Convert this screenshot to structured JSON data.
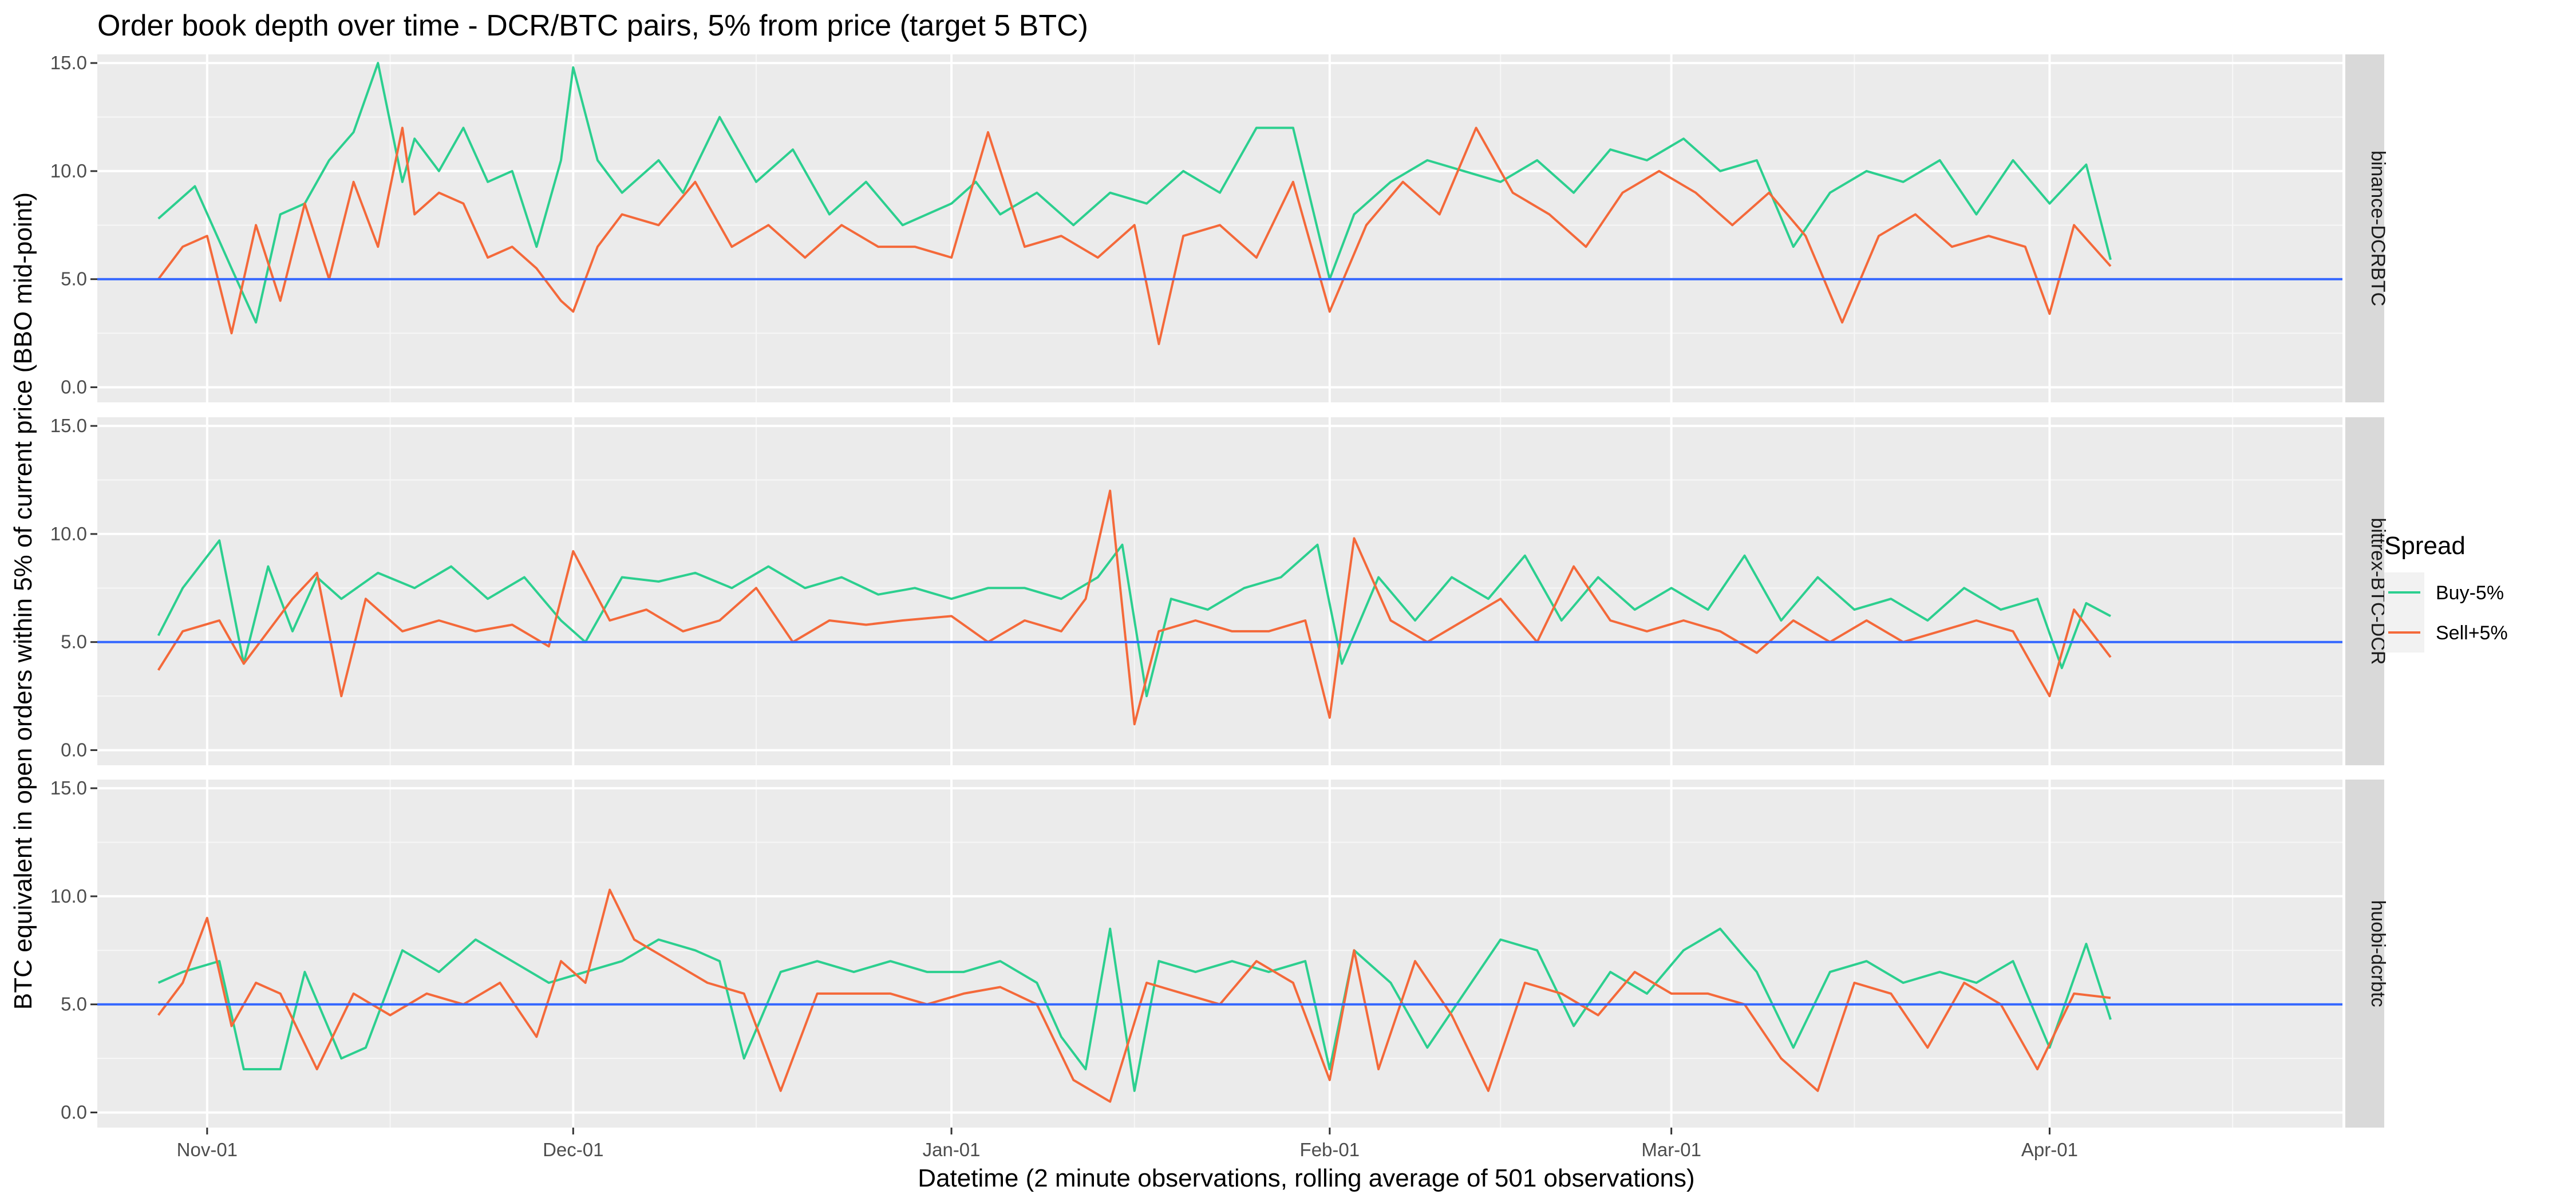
{
  "chart_data": {
    "type": "line",
    "title": "Order book depth over time - DCR/BTC pairs, 5% from price (target 5 BTC)",
    "xlabel": "Datetime (2 minute observations, rolling average of 501 observations)",
    "ylabel": "BTC equivalent in open orders within 5% of current price (BBO mid-point)",
    "x_range": [
      "2017-10-23",
      "2018-04-25"
    ],
    "x_ticks": [
      {
        "date": "2017-11-01",
        "label": "Nov-01"
      },
      {
        "date": "2017-12-01",
        "label": "Dec-01"
      },
      {
        "date": "2018-01-01",
        "label": "Jan-01"
      },
      {
        "date": "2018-02-01",
        "label": "Feb-01"
      },
      {
        "date": "2018-03-01",
        "label": "Mar-01"
      },
      {
        "date": "2018-04-01",
        "label": "Apr-01"
      }
    ],
    "ylim": [
      -0.7,
      15.4
    ],
    "y_ticks": [
      0.0,
      5.0,
      10.0,
      15.0
    ],
    "y_tick_labels": [
      "0.0",
      "5.0",
      "10.0",
      "15.0"
    ],
    "reference_line": {
      "y": 5,
      "color": "#3366ff"
    },
    "grid": true,
    "legend": {
      "title": "Spread",
      "position": "right",
      "entries": [
        {
          "label": "Buy-5%",
          "color": "#2ccf8f"
        },
        {
          "label": "Sell+5%",
          "color": "#f4693a"
        }
      ]
    },
    "panels": [
      {
        "label": "binance-DCRBTC",
        "series": [
          {
            "name": "Buy-5%",
            "color": "#2ccf8f",
            "x": [
              "2017-10-28",
              "2017-10-31",
              "2017-11-03",
              "2017-11-05",
              "2017-11-07",
              "2017-11-09",
              "2017-11-11",
              "2017-11-13",
              "2017-11-15",
              "2017-11-17",
              "2017-11-18",
              "2017-11-20",
              "2017-11-22",
              "2017-11-24",
              "2017-11-26",
              "2017-11-28",
              "2017-11-30",
              "2017-12-01",
              "2017-12-03",
              "2017-12-05",
              "2017-12-08",
              "2017-12-10",
              "2017-12-13",
              "2017-12-16",
              "2017-12-19",
              "2017-12-22",
              "2017-12-25",
              "2017-12-28",
              "2018-01-01",
              "2018-01-03",
              "2018-01-05",
              "2018-01-08",
              "2018-01-11",
              "2018-01-14",
              "2018-01-17",
              "2018-01-20",
              "2018-01-23",
              "2018-01-26",
              "2018-01-29",
              "2018-02-01",
              "2018-02-03",
              "2018-02-06",
              "2018-02-09",
              "2018-02-12",
              "2018-02-15",
              "2018-02-18",
              "2018-02-21",
              "2018-02-24",
              "2018-02-27",
              "2018-03-02",
              "2018-03-05",
              "2018-03-08",
              "2018-03-11",
              "2018-03-14",
              "2018-03-17",
              "2018-03-20",
              "2018-03-23",
              "2018-03-26",
              "2018-03-29",
              "2018-04-01",
              "2018-04-04",
              "2018-04-06"
            ],
            "y": [
              7.8,
              9.3,
              5.5,
              3.0,
              8.0,
              8.5,
              10.5,
              11.8,
              15.0,
              9.5,
              11.5,
              10.0,
              12.0,
              9.5,
              10.0,
              6.5,
              10.5,
              14.8,
              10.5,
              9.0,
              10.5,
              9.0,
              12.5,
              9.5,
              11.0,
              8.0,
              9.5,
              7.5,
              8.5,
              9.5,
              8.0,
              9.0,
              7.5,
              9.0,
              8.5,
              10.0,
              9.0,
              12.0,
              12.0,
              5.0,
              8.0,
              9.5,
              10.5,
              10.0,
              9.5,
              10.5,
              9.0,
              11.0,
              10.5,
              11.5,
              10.0,
              10.5,
              6.5,
              9.0,
              10.0,
              9.5,
              10.5,
              8.0,
              10.5,
              8.5,
              10.3,
              5.9
            ]
          },
          {
            "name": "Sell+5%",
            "color": "#f4693a",
            "x": [
              "2017-10-28",
              "2017-10-30",
              "2017-11-01",
              "2017-11-03",
              "2017-11-05",
              "2017-11-07",
              "2017-11-09",
              "2017-11-11",
              "2017-11-13",
              "2017-11-15",
              "2017-11-17",
              "2017-11-18",
              "2017-11-20",
              "2017-11-22",
              "2017-11-24",
              "2017-11-26",
              "2017-11-28",
              "2017-11-30",
              "2017-12-01",
              "2017-12-03",
              "2017-12-05",
              "2017-12-08",
              "2017-12-11",
              "2017-12-14",
              "2017-12-17",
              "2017-12-20",
              "2017-12-23",
              "2017-12-26",
              "2017-12-29",
              "2018-01-01",
              "2018-01-04",
              "2018-01-07",
              "2018-01-10",
              "2018-01-13",
              "2018-01-16",
              "2018-01-18",
              "2018-01-20",
              "2018-01-23",
              "2018-01-26",
              "2018-01-29",
              "2018-02-01",
              "2018-02-04",
              "2018-02-07",
              "2018-02-10",
              "2018-02-13",
              "2018-02-16",
              "2018-02-19",
              "2018-02-22",
              "2018-02-25",
              "2018-02-28",
              "2018-03-03",
              "2018-03-06",
              "2018-03-09",
              "2018-03-12",
              "2018-03-15",
              "2018-03-18",
              "2018-03-21",
              "2018-03-24",
              "2018-03-27",
              "2018-03-30",
              "2018-04-01",
              "2018-04-03",
              "2018-04-06"
            ],
            "y": [
              5.0,
              6.5,
              7.0,
              2.5,
              7.5,
              4.0,
              8.5,
              5.0,
              9.5,
              6.5,
              12.0,
              8.0,
              9.0,
              8.5,
              6.0,
              6.5,
              5.5,
              4.0,
              3.5,
              6.5,
              8.0,
              7.5,
              9.5,
              6.5,
              7.5,
              6.0,
              7.5,
              6.5,
              6.5,
              6.0,
              11.8,
              6.5,
              7.0,
              6.0,
              7.5,
              2.0,
              7.0,
              7.5,
              6.0,
              9.5,
              3.5,
              7.5,
              9.5,
              8.0,
              12.0,
              9.0,
              8.0,
              6.5,
              9.0,
              10.0,
              9.0,
              7.5,
              9.0,
              7.0,
              3.0,
              7.0,
              8.0,
              6.5,
              7.0,
              6.5,
              3.4,
              7.5,
              5.6
            ]
          }
        ]
      },
      {
        "label": "bittrex-BTC-DCR",
        "series": [
          {
            "name": "Buy-5%",
            "color": "#2ccf8f",
            "x": [
              "2017-10-28",
              "2017-10-30",
              "2017-11-02",
              "2017-11-04",
              "2017-11-06",
              "2017-11-08",
              "2017-11-10",
              "2017-11-12",
              "2017-11-15",
              "2017-11-18",
              "2017-11-21",
              "2017-11-24",
              "2017-11-27",
              "2017-11-30",
              "2017-12-02",
              "2017-12-05",
              "2017-12-08",
              "2017-12-11",
              "2017-12-14",
              "2017-12-17",
              "2017-12-20",
              "2017-12-23",
              "2017-12-26",
              "2017-12-29",
              "2018-01-01",
              "2018-01-04",
              "2018-01-07",
              "2018-01-10",
              "2018-01-13",
              "2018-01-15",
              "2018-01-17",
              "2018-01-19",
              "2018-01-22",
              "2018-01-25",
              "2018-01-28",
              "2018-01-31",
              "2018-02-02",
              "2018-02-05",
              "2018-02-08",
              "2018-02-11",
              "2018-02-14",
              "2018-02-17",
              "2018-02-20",
              "2018-02-23",
              "2018-02-26",
              "2018-03-01",
              "2018-03-04",
              "2018-03-07",
              "2018-03-10",
              "2018-03-13",
              "2018-03-16",
              "2018-03-19",
              "2018-03-22",
              "2018-03-25",
              "2018-03-28",
              "2018-03-31",
              "2018-04-02",
              "2018-04-04",
              "2018-04-06"
            ],
            "y": [
              5.3,
              7.5,
              9.7,
              4.0,
              8.5,
              5.5,
              8.0,
              7.0,
              8.2,
              7.5,
              8.5,
              7.0,
              8.0,
              6.0,
              5.0,
              8.0,
              7.8,
              8.2,
              7.5,
              8.5,
              7.5,
              8.0,
              7.2,
              7.5,
              7.0,
              7.5,
              7.5,
              7.0,
              8.0,
              9.5,
              2.5,
              7.0,
              6.5,
              7.5,
              8.0,
              9.5,
              4.0,
              8.0,
              6.0,
              8.0,
              7.0,
              9.0,
              6.0,
              8.0,
              6.5,
              7.5,
              6.5,
              9.0,
              6.0,
              8.0,
              6.5,
              7.0,
              6.0,
              7.5,
              6.5,
              7.0,
              3.8,
              6.8,
              6.2
            ]
          },
          {
            "name": "Sell+5%",
            "color": "#f4693a",
            "x": [
              "2017-10-28",
              "2017-10-30",
              "2017-11-02",
              "2017-11-04",
              "2017-11-06",
              "2017-11-08",
              "2017-11-10",
              "2017-11-12",
              "2017-11-14",
              "2017-11-17",
              "2017-11-20",
              "2017-11-23",
              "2017-11-26",
              "2017-11-29",
              "2017-12-01",
              "2017-12-04",
              "2017-12-07",
              "2017-12-10",
              "2017-12-13",
              "2017-12-16",
              "2017-12-19",
              "2017-12-22",
              "2017-12-25",
              "2017-12-28",
              "2018-01-01",
              "2018-01-04",
              "2018-01-07",
              "2018-01-10",
              "2018-01-12",
              "2018-01-14",
              "2018-01-16",
              "2018-01-18",
              "2018-01-21",
              "2018-01-24",
              "2018-01-27",
              "2018-01-30",
              "2018-02-01",
              "2018-02-03",
              "2018-02-06",
              "2018-02-09",
              "2018-02-12",
              "2018-02-15",
              "2018-02-18",
              "2018-02-21",
              "2018-02-24",
              "2018-02-27",
              "2018-03-02",
              "2018-03-05",
              "2018-03-08",
              "2018-03-11",
              "2018-03-14",
              "2018-03-17",
              "2018-03-20",
              "2018-03-23",
              "2018-03-26",
              "2018-03-29",
              "2018-04-01",
              "2018-04-03",
              "2018-04-06"
            ],
            "y": [
              3.7,
              5.5,
              6.0,
              4.0,
              5.5,
              7.0,
              8.2,
              2.5,
              7.0,
              5.5,
              6.0,
              5.5,
              5.8,
              4.8,
              9.2,
              6.0,
              6.5,
              5.5,
              6.0,
              7.5,
              5.0,
              6.0,
              5.8,
              6.0,
              6.2,
              5.0,
              6.0,
              5.5,
              7.0,
              12.0,
              1.2,
              5.5,
              6.0,
              5.5,
              5.5,
              6.0,
              1.5,
              9.8,
              6.0,
              5.0,
              6.0,
              7.0,
              5.0,
              8.5,
              6.0,
              5.5,
              6.0,
              5.5,
              4.5,
              6.0,
              5.0,
              6.0,
              5.0,
              5.5,
              6.0,
              5.5,
              2.5,
              6.5,
              4.3
            ]
          }
        ]
      },
      {
        "label": "huobi-dcrbtc",
        "series": [
          {
            "name": "Buy-5%",
            "color": "#2ccf8f",
            "x": [
              "2017-10-28",
              "2017-10-30",
              "2017-11-02",
              "2017-11-04",
              "2017-11-07",
              "2017-11-09",
              "2017-11-12",
              "2017-11-14",
              "2017-11-17",
              "2017-11-20",
              "2017-11-23",
              "2017-11-26",
              "2017-11-29",
              "2017-12-02",
              "2017-12-05",
              "2017-12-08",
              "2017-12-11",
              "2017-12-13",
              "2017-12-15",
              "2017-12-18",
              "2017-12-21",
              "2017-12-24",
              "2017-12-27",
              "2017-12-30",
              "2018-01-02",
              "2018-01-05",
              "2018-01-08",
              "2018-01-10",
              "2018-01-12",
              "2018-01-14",
              "2018-01-16",
              "2018-01-18",
              "2018-01-21",
              "2018-01-24",
              "2018-01-27",
              "2018-01-30",
              "2018-02-01",
              "2018-02-03",
              "2018-02-06",
              "2018-02-09",
              "2018-02-12",
              "2018-02-15",
              "2018-02-18",
              "2018-02-21",
              "2018-02-24",
              "2018-02-27",
              "2018-03-02",
              "2018-03-05",
              "2018-03-08",
              "2018-03-11",
              "2018-03-14",
              "2018-03-17",
              "2018-03-20",
              "2018-03-23",
              "2018-03-26",
              "2018-03-29",
              "2018-04-01",
              "2018-04-04",
              "2018-04-06"
            ],
            "y": [
              6.0,
              6.5,
              7.0,
              2.0,
              2.0,
              6.5,
              2.5,
              3.0,
              7.5,
              6.5,
              8.0,
              7.0,
              6.0,
              6.5,
              7.0,
              8.0,
              7.5,
              7.0,
              2.5,
              6.5,
              7.0,
              6.5,
              7.0,
              6.5,
              6.5,
              7.0,
              6.0,
              3.5,
              2.0,
              8.5,
              1.0,
              7.0,
              6.5,
              7.0,
              6.5,
              7.0,
              2.0,
              7.5,
              6.0,
              3.0,
              5.5,
              8.0,
              7.5,
              4.0,
              6.5,
              5.5,
              7.5,
              8.5,
              6.5,
              3.0,
              6.5,
              7.0,
              6.0,
              6.5,
              6.0,
              7.0,
              3.0,
              7.8,
              4.3
            ]
          },
          {
            "name": "Sell+5%",
            "color": "#f4693a",
            "x": [
              "2017-10-28",
              "2017-10-30",
              "2017-11-01",
              "2017-11-03",
              "2017-11-05",
              "2017-11-07",
              "2017-11-10",
              "2017-11-13",
              "2017-11-16",
              "2017-11-19",
              "2017-11-22",
              "2017-11-25",
              "2017-11-28",
              "2017-11-30",
              "2017-12-02",
              "2017-12-04",
              "2017-12-06",
              "2017-12-09",
              "2017-12-12",
              "2017-12-15",
              "2017-12-18",
              "2017-12-21",
              "2017-12-24",
              "2017-12-27",
              "2017-12-30",
              "2018-01-02",
              "2018-01-05",
              "2018-01-08",
              "2018-01-11",
              "2018-01-14",
              "2018-01-17",
              "2018-01-20",
              "2018-01-23",
              "2018-01-26",
              "2018-01-29",
              "2018-02-01",
              "2018-02-03",
              "2018-02-05",
              "2018-02-08",
              "2018-02-11",
              "2018-02-14",
              "2018-02-17",
              "2018-02-20",
              "2018-02-23",
              "2018-02-26",
              "2018-03-01",
              "2018-03-04",
              "2018-03-07",
              "2018-03-10",
              "2018-03-13",
              "2018-03-16",
              "2018-03-19",
              "2018-03-22",
              "2018-03-25",
              "2018-03-28",
              "2018-03-31",
              "2018-04-03",
              "2018-04-06"
            ],
            "y": [
              4.5,
              6.0,
              9.0,
              4.0,
              6.0,
              5.5,
              2.0,
              5.5,
              4.5,
              5.5,
              5.0,
              6.0,
              3.5,
              7.0,
              6.0,
              10.3,
              8.0,
              7.0,
              6.0,
              5.5,
              1.0,
              5.5,
              5.5,
              5.5,
              5.0,
              5.5,
              5.8,
              5.0,
              1.5,
              0.5,
              6.0,
              5.5,
              5.0,
              7.0,
              6.0,
              1.5,
              7.5,
              2.0,
              7.0,
              4.5,
              1.0,
              6.0,
              5.5,
              4.5,
              6.5,
              5.5,
              5.5,
              5.0,
              2.5,
              1.0,
              6.0,
              5.5,
              3.0,
              6.0,
              5.0,
              2.0,
              5.5,
              5.3
            ]
          }
        ]
      }
    ]
  }
}
